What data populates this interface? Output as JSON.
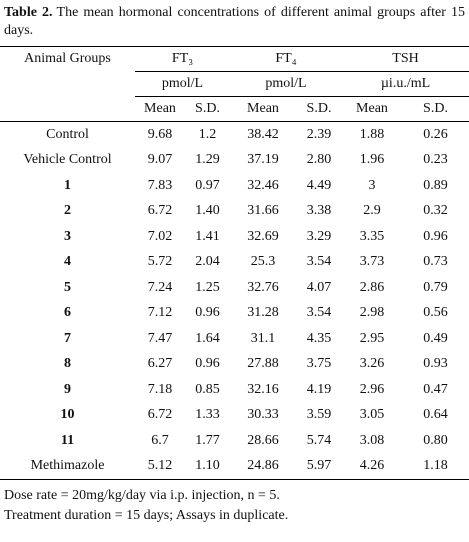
{
  "caption": {
    "label": "Table 2.",
    "text": "The mean hormonal concentrations of different animal groups after 15 days."
  },
  "table": {
    "header": {
      "group": "Animal Groups",
      "hormones": [
        {
          "name": "FT₃",
          "unit": "pmol/L"
        },
        {
          "name": "FT₄",
          "unit": "pmol/L"
        },
        {
          "name": "TSH",
          "unit": "µi.u./mL"
        }
      ],
      "stats": [
        "Mean",
        "S.D."
      ]
    },
    "rows": [
      [
        "Control",
        "9.68",
        "1.2",
        "38.42",
        "2.39",
        "1.88",
        "0.26"
      ],
      [
        "Vehicle Control",
        "9.07",
        "1.29",
        "37.19",
        "2.80",
        "1.96",
        "0.23"
      ],
      [
        "1",
        "7.83",
        "0.97",
        "32.46",
        "4.49",
        "3",
        "0.89"
      ],
      [
        "2",
        "6.72",
        "1.40",
        "31.66",
        "3.38",
        "2.9",
        "0.32"
      ],
      [
        "3",
        "7.02",
        "1.41",
        "32.69",
        "3.29",
        "3.35",
        "0.96"
      ],
      [
        "4",
        "5.72",
        "2.04",
        "25.3",
        "3.54",
        "3.73",
        "0.73"
      ],
      [
        "5",
        "7.24",
        "1.25",
        "32.76",
        "4.07",
        "2.86",
        "0.79"
      ],
      [
        "6",
        "7.12",
        "0.96",
        "31.28",
        "3.54",
        "2.98",
        "0.56"
      ],
      [
        "7",
        "7.47",
        "1.64",
        "31.1",
        "4.35",
        "2.95",
        "0.49"
      ],
      [
        "8",
        "6.27",
        "0.96",
        "27.88",
        "3.75",
        "3.26",
        "0.93"
      ],
      [
        "9",
        "7.18",
        "0.85",
        "32.16",
        "4.19",
        "2.96",
        "0.47"
      ],
      [
        "10",
        "6.72",
        "1.33",
        "30.33",
        "3.59",
        "3.05",
        "0.64"
      ],
      [
        "11",
        "6.7",
        "1.77",
        "28.66",
        "5.74",
        "3.08",
        "0.80"
      ],
      [
        "Methimazole",
        "5.12",
        "1.10",
        "24.86",
        "5.97",
        "4.26",
        "1.18"
      ]
    ]
  },
  "notes": [
    "Dose rate = 20mg/kg/day via i.p. injection, n = 5.",
    "Treatment duration = 15 days; Assays in duplicate."
  ]
}
